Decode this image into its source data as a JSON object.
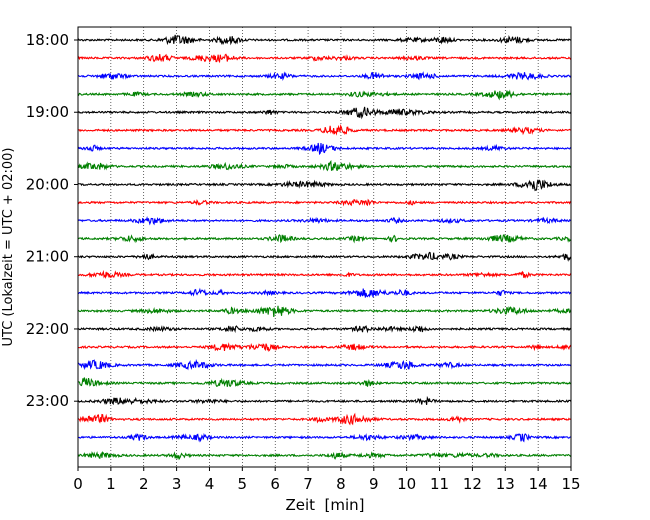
{
  "chart_data": {
    "type": "line",
    "title": "",
    "xlabel": "Zeit  [min]",
    "ylabel": "UTC (Lokalzeit = UTC + 02:00)",
    "xlim": [
      0,
      15
    ],
    "x_ticks": [
      "0",
      "1",
      "2",
      "3",
      "4",
      "5",
      "6",
      "7",
      "8",
      "9",
      "10",
      "11",
      "12",
      "13",
      "14",
      "15"
    ],
    "y_tick_labels": [
      "18:00",
      "19:00",
      "20:00",
      "21:00",
      "22:00",
      "23:00"
    ],
    "grid": "vertical dotted lines at each minute",
    "trace_interval_min": 15,
    "trace_colors": [
      "#000000",
      "#ff0000",
      "#0000ff",
      "#008000"
    ],
    "series": [
      {
        "start": "18:00"
      },
      {
        "start": "18:15"
      },
      {
        "start": "18:30"
      },
      {
        "start": "18:45"
      },
      {
        "start": "19:00"
      },
      {
        "start": "19:15"
      },
      {
        "start": "19:30"
      },
      {
        "start": "19:45"
      },
      {
        "start": "20:00"
      },
      {
        "start": "20:15"
      },
      {
        "start": "20:30"
      },
      {
        "start": "20:45"
      },
      {
        "start": "21:00"
      },
      {
        "start": "21:15"
      },
      {
        "start": "21:30"
      },
      {
        "start": "21:45"
      },
      {
        "start": "22:00"
      },
      {
        "start": "22:15"
      },
      {
        "start": "22:30"
      },
      {
        "start": "22:45"
      },
      {
        "start": "23:00"
      },
      {
        "start": "23:15"
      },
      {
        "start": "23:30"
      },
      {
        "start": "23:45"
      }
    ]
  }
}
